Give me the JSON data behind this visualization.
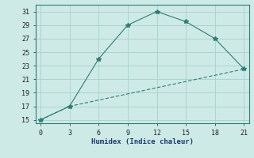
{
  "line1_x": [
    0,
    3,
    6,
    9,
    12,
    15,
    18,
    21
  ],
  "line1_y": [
    15,
    17,
    24,
    29,
    31,
    29.5,
    27,
    22.5
  ],
  "line2_x": [
    0,
    3,
    21
  ],
  "line2_y": [
    15,
    17,
    22.5
  ],
  "color": "#2d7d74",
  "xlabel": "Humidex (Indice chaleur)",
  "xlim": [
    -0.5,
    21.5
  ],
  "ylim": [
    14.5,
    32
  ],
  "xticks": [
    0,
    3,
    6,
    9,
    12,
    15,
    18,
    21
  ],
  "yticks": [
    15,
    17,
    19,
    21,
    23,
    25,
    27,
    29,
    31
  ],
  "bg_color": "#ceeae6",
  "grid_color": "#a8d0cb"
}
